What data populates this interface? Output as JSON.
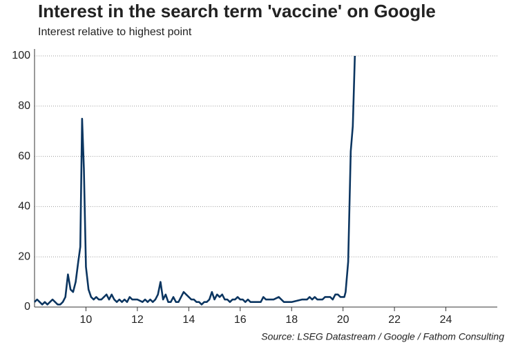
{
  "chart_data": {
    "type": "line",
    "title": "Interest in the search term 'vaccine' on Google",
    "subtitle": "Interest relative to highest point",
    "source": "Source: LSEG Datastream / Google / Fathom Consulting",
    "color": "#0b3560",
    "x": [
      8.0,
      8.1,
      8.2,
      8.3,
      8.4,
      8.5,
      8.6,
      8.7,
      8.8,
      8.9,
      9.0,
      9.1,
      9.2,
      9.3,
      9.4,
      9.5,
      9.6,
      9.7,
      9.78,
      9.85,
      9.92,
      10.0,
      10.1,
      10.2,
      10.3,
      10.4,
      10.5,
      10.6,
      10.7,
      10.8,
      10.9,
      11.0,
      11.1,
      11.2,
      11.3,
      11.4,
      11.5,
      11.6,
      11.7,
      11.8,
      11.9,
      12.0,
      12.2,
      12.3,
      12.4,
      12.5,
      12.6,
      12.7,
      12.8,
      12.9,
      13.0,
      13.1,
      13.2,
      13.3,
      13.4,
      13.5,
      13.6,
      13.8,
      14.0,
      14.1,
      14.2,
      14.3,
      14.4,
      14.5,
      14.6,
      14.7,
      14.8,
      14.9,
      15.0,
      15.1,
      15.2,
      15.3,
      15.4,
      15.5,
      15.6,
      15.7,
      15.8,
      15.9,
      16.0,
      16.1,
      16.2,
      16.3,
      16.4,
      16.5,
      16.6,
      16.8,
      16.9,
      17.0,
      17.1,
      17.2,
      17.3,
      17.5,
      17.6,
      17.7,
      17.8,
      18.0,
      18.4,
      18.6,
      18.7,
      18.8,
      18.9,
      19.0,
      19.1,
      19.2,
      19.3,
      19.4,
      19.5,
      19.6,
      19.7,
      19.8,
      19.9,
      20.0,
      20.05,
      20.1,
      20.2,
      20.3,
      20.38,
      20.46
    ],
    "values": [
      2,
      3,
      2,
      1,
      2,
      1,
      2,
      3,
      2,
      1,
      1,
      2,
      4,
      13,
      7,
      6,
      10,
      18,
      24,
      75,
      55,
      16,
      7,
      4,
      3,
      4,
      3,
      3,
      4,
      5,
      3,
      5,
      3,
      2,
      3,
      2,
      3,
      2,
      4,
      3,
      3,
      3,
      2,
      3,
      2,
      3,
      2,
      3,
      5,
      10,
      3,
      5,
      2,
      2,
      4,
      2,
      2,
      6,
      4,
      3,
      3,
      2,
      2,
      1,
      2,
      2,
      3,
      6,
      3,
      5,
      4,
      5,
      3,
      3,
      2,
      3,
      3,
      4,
      3,
      3,
      2,
      3,
      2,
      2,
      2,
      2,
      4,
      3,
      3,
      3,
      3,
      4,
      3,
      2,
      2,
      2,
      3,
      3,
      4,
      3,
      4,
      3,
      3,
      3,
      4,
      4,
      4,
      3,
      5,
      5,
      4,
      4,
      4,
      6,
      18,
      62,
      72,
      100
    ],
    "xlim": [
      8,
      26
    ],
    "xticks": [
      10,
      12,
      14,
      16,
      18,
      20,
      22,
      24
    ],
    "ylim": [
      0,
      100
    ],
    "yticks": [
      0,
      20,
      40,
      60,
      80,
      100
    ],
    "grid": true
  }
}
